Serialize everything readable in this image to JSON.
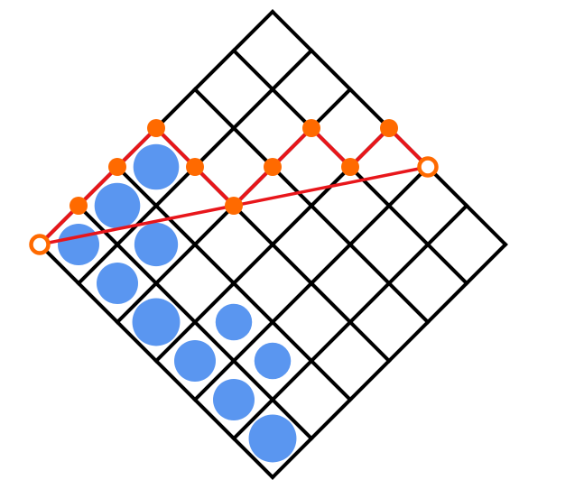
{
  "colors": {
    "background": "#ffffff",
    "grid": "#000000",
    "path": "#e8161b",
    "node": "#ff6a00",
    "endpoint_fill": "#ffffff",
    "circle": "#5a96f0"
  },
  "lattice": {
    "size": 6
  },
  "path_steps": [
    1,
    1,
    1,
    -1,
    -1,
    1,
    1,
    -1,
    1,
    -1
  ],
  "circles": [
    {
      "u": 0,
      "v": 0,
      "scale": 1.0
    },
    {
      "u": 1,
      "v": 0,
      "scale": 1.0
    },
    {
      "u": 2,
      "v": 0,
      "scale": 1.15
    },
    {
      "u": 3,
      "v": 0,
      "scale": 1.0
    },
    {
      "u": 4,
      "v": 0,
      "scale": 1.0
    },
    {
      "u": 5,
      "v": 0,
      "scale": 1.15
    },
    {
      "u": 0,
      "v": 1,
      "scale": 1.1
    },
    {
      "u": 1,
      "v": 1,
      "scale": 1.05
    },
    {
      "u": 3,
      "v": 1,
      "scale": 0.88
    },
    {
      "u": 4,
      "v": 1,
      "scale": 0.88
    },
    {
      "u": 0,
      "v": 2,
      "scale": 1.1
    }
  ]
}
